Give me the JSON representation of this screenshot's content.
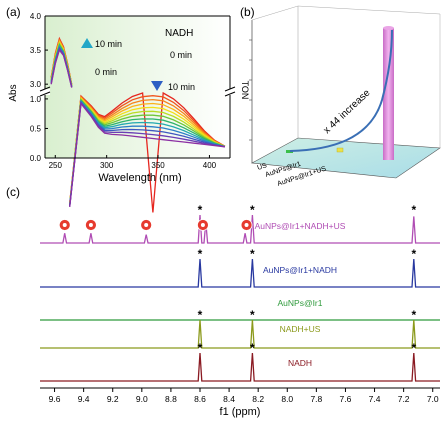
{
  "chart_data": [
    {
      "panel": "(a)",
      "type": "line",
      "xlabel": "Wavelength (nm)",
      "ylabel": "Abs",
      "xlim": [
        240,
        420
      ],
      "xticks": [
        250,
        300,
        350,
        400
      ],
      "yticks": [
        "0.0",
        "0.5",
        "1.0",
        "3.0",
        "3.5",
        "4.0"
      ],
      "axis_break": [
        1.1,
        2.9
      ],
      "legend_title": "NADH",
      "annotations": [
        {
          "text": "10 min",
          "arrow": "up"
        },
        {
          "text": "0 min",
          "arrow": "up"
        },
        {
          "text": "0 min",
          "arrow": "down"
        },
        {
          "text": "10 min",
          "arrow": "down"
        }
      ],
      "series_colors": [
        "#e6261f",
        "#f0541d",
        "#f6831c",
        "#fbb21a",
        "#f3df19",
        "#b9dc24",
        "#6ec63a",
        "#2fb36b",
        "#23a9b0",
        "#2d7fc8",
        "#3f57c0",
        "#6a3fb5",
        "#8b2fa3"
      ],
      "main_band": {
        "x": [
          264,
          275,
          285,
          292,
          298,
          305,
          315,
          325,
          335,
          345,
          355,
          365,
          375,
          385,
          395,
          405,
          415
        ],
        "y_first": [
          1.25,
          1.05,
          0.88,
          0.74,
          0.7,
          0.79,
          0.93,
          1.04,
          1.1,
          1.12,
          1.1,
          1.0,
          0.85,
          0.66,
          0.46,
          0.3,
          0.2
        ],
        "y_last": [
          1.2,
          0.92,
          0.7,
          0.52,
          0.42,
          0.4,
          0.39,
          0.37,
          0.35,
          0.33,
          0.31,
          0.29,
          0.27,
          0.25,
          0.23,
          0.21,
          0.19
        ]
      },
      "upper_band": {
        "x": [
          246,
          250,
          254,
          258,
          262,
          266
        ],
        "y_first": [
          3.1,
          3.45,
          3.67,
          3.55,
          3.3,
          3.0
        ],
        "y_last": [
          3.0,
          3.3,
          3.5,
          3.42,
          3.2,
          2.95
        ]
      }
    },
    {
      "panel": "(b)",
      "type": "bar",
      "ylabel": "TON",
      "categories": [
        "US",
        "AuNPs@Ir1",
        "AuNPs@Ir1+US"
      ],
      "annotation": "x 44 increase",
      "bar_color": "#d67fd0"
    },
    {
      "panel": "(c)",
      "type": "line",
      "xlabel": "f1 (ppm)",
      "xlim": [
        9.7,
        6.95
      ],
      "xticks": [
        "9.6",
        "9.4",
        "9.2",
        "9.0",
        "8.8",
        "8.6",
        "8.4",
        "8.2",
        "8.0",
        "7.8",
        "7.6",
        "7.4",
        "7.2",
        "7.0"
      ],
      "series": [
        {
          "name": "AuNPs@Ir1+NADH+US",
          "color": "#b04db4",
          "peaks": [
            9.53,
            9.35,
            8.97,
            8.6,
            8.56,
            8.29,
            8.24,
            7.13
          ],
          "heights": [
            0.35,
            0.35,
            0.3,
            1.0,
            0.75,
            0.35,
            1.0,
            0.95
          ]
        },
        {
          "name": "AuNPs@Ir1+NADH",
          "color": "#2838a0",
          "peaks": [
            8.6,
            8.24,
            7.13
          ],
          "heights": [
            1.0,
            1.0,
            1.0
          ]
        },
        {
          "name": "AuNPs@Ir1",
          "color": "#2f9a3c",
          "peaks": [],
          "heights": []
        },
        {
          "name": "NADH+US",
          "color": "#8b9a1c",
          "peaks": [
            8.6,
            8.24,
            7.13
          ],
          "heights": [
            1.0,
            1.0,
            1.0
          ]
        },
        {
          "name": "NADH",
          "color": "#8a1a22",
          "peaks": [
            8.6,
            8.24,
            7.13
          ],
          "heights": [
            1.0,
            1.0,
            1.0
          ]
        }
      ],
      "red_markers": [
        9.53,
        9.35,
        8.97,
        8.58,
        8.28
      ],
      "star_marker": "*"
    }
  ]
}
